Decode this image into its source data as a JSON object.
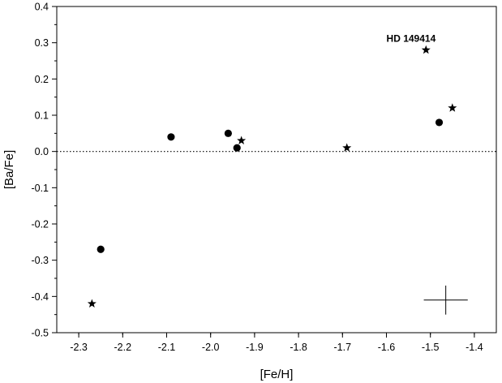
{
  "chart_data": {
    "type": "scatter",
    "title": "",
    "xlabel": "[Fe/H]",
    "ylabel": "[Ba/Fe]",
    "xlim": [
      -2.35,
      -1.35
    ],
    "ylim": [
      -0.5,
      0.4
    ],
    "x_ticks": [
      -2.3,
      -2.2,
      -2.1,
      -2.0,
      -1.9,
      -1.8,
      -1.7,
      -1.6,
      -1.5,
      -1.4
    ],
    "x_tick_labels": [
      "-2.3",
      "-2.2",
      "-2.1",
      "-2.0",
      "-1.9",
      "-1.8",
      "-1.7",
      "-1.6",
      "-1.5",
      "-1.4"
    ],
    "y_ticks": [
      -0.5,
      -0.4,
      -0.3,
      -0.2,
      -0.1,
      0.0,
      0.1,
      0.2,
      0.3,
      0.4
    ],
    "y_tick_labels": [
      "-0.5",
      "-0.4",
      "-0.3",
      "-0.2",
      "-0.1",
      "0.0",
      "0.1",
      "0.2",
      "0.3",
      "0.4"
    ],
    "grid": false,
    "reference_line": {
      "y": 0.0,
      "style": "dotted"
    },
    "series": [
      {
        "marker": "circle",
        "points": [
          {
            "x": -2.25,
            "y": -0.27
          },
          {
            "x": -2.09,
            "y": 0.04
          },
          {
            "x": -1.96,
            "y": 0.05
          },
          {
            "x": -1.94,
            "y": 0.01
          },
          {
            "x": -1.48,
            "y": 0.08
          }
        ]
      },
      {
        "marker": "star",
        "points": [
          {
            "x": -2.27,
            "y": -0.42
          },
          {
            "x": -1.93,
            "y": 0.03
          },
          {
            "x": -1.69,
            "y": 0.01
          },
          {
            "x": -1.51,
            "y": 0.28
          },
          {
            "x": -1.45,
            "y": 0.12
          }
        ]
      }
    ],
    "annotations": [
      {
        "text": "HD 149414",
        "x": -1.51,
        "y": 0.28
      }
    ],
    "error_bar": {
      "x": -1.465,
      "y": -0.41,
      "x_err": 0.05,
      "y_err": 0.04
    },
    "colors": {
      "markers": "#000000",
      "axes": "#000000"
    }
  }
}
